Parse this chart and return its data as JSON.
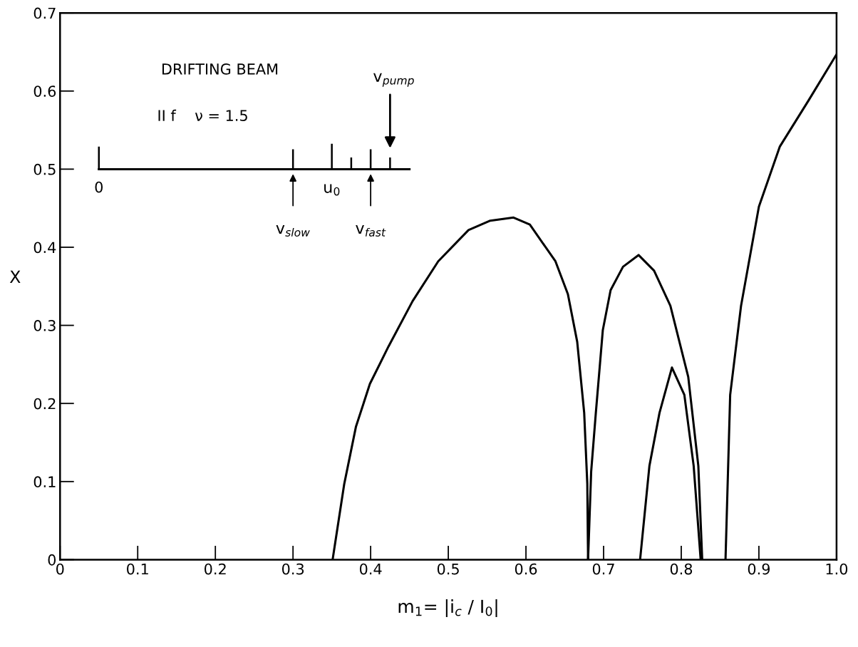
{
  "chart_data": {
    "type": "line",
    "xlabel": "m$_{1}$= |i$_{c}$ / I$_{0}$|",
    "ylabel": "X",
    "xlim": [
      0,
      1.0
    ],
    "ylim": [
      0,
      0.7
    ],
    "xticks": [
      0,
      0.1,
      0.2,
      0.3,
      0.4,
      0.5,
      0.6,
      0.7,
      0.8,
      0.9,
      {
        "value": 1.0,
        "label": "1.0"
      }
    ],
    "yticks": [
      0,
      0.1,
      0.2,
      0.3,
      0.4,
      0.5,
      0.6,
      0.7
    ],
    "grid": false,
    "legend": false,
    "marker": "none",
    "line_style": "solid",
    "annotations": [
      "DRIFTING BEAM",
      "II f    ν = 1.5",
      "0",
      "v$_{slow}$",
      "u$_{0}$",
      "v$_{fast}$",
      "v$_{pump}$"
    ],
    "series": [
      {
        "color": "#000000",
        "x": [
          0.351,
          0.366,
          0.381,
          0.399,
          0.423,
          0.454,
          0.487,
          0.526,
          0.554,
          0.584,
          0.605,
          0.638,
          0.654,
          0.666,
          0.675,
          0.679,
          0.68
        ],
        "values": [
          0,
          0.097,
          0.17,
          0.225,
          0.273,
          0.331,
          0.382,
          0.422,
          0.434,
          0.438,
          0.429,
          0.382,
          0.34,
          0.279,
          0.188,
          0.097,
          0
        ]
      },
      {
        "color": "#000000",
        "x": [
          0.68,
          0.684,
          0.69,
          0.699,
          0.709,
          0.725,
          0.745,
          0.765,
          0.786,
          0.809,
          0.822,
          0.827
        ],
        "values": [
          0,
          0.113,
          0.188,
          0.294,
          0.345,
          0.375,
          0.39,
          0.37,
          0.325,
          0.234,
          0.12,
          0
        ]
      },
      {
        "color": "#000000",
        "x": [
          0.747,
          0.759,
          0.772,
          0.788,
          0.804,
          0.816,
          0.825
        ],
        "values": [
          0,
          0.12,
          0.188,
          0.246,
          0.211,
          0.12,
          0
        ]
      },
      {
        "color": "#000000",
        "x": [
          0.857,
          0.863,
          0.877,
          0.9,
          0.927,
          0.964,
          1.0
        ],
        "values": [
          0,
          0.211,
          0.325,
          0.452,
          0.529,
          0.588,
          0.647
        ]
      }
    ]
  }
}
